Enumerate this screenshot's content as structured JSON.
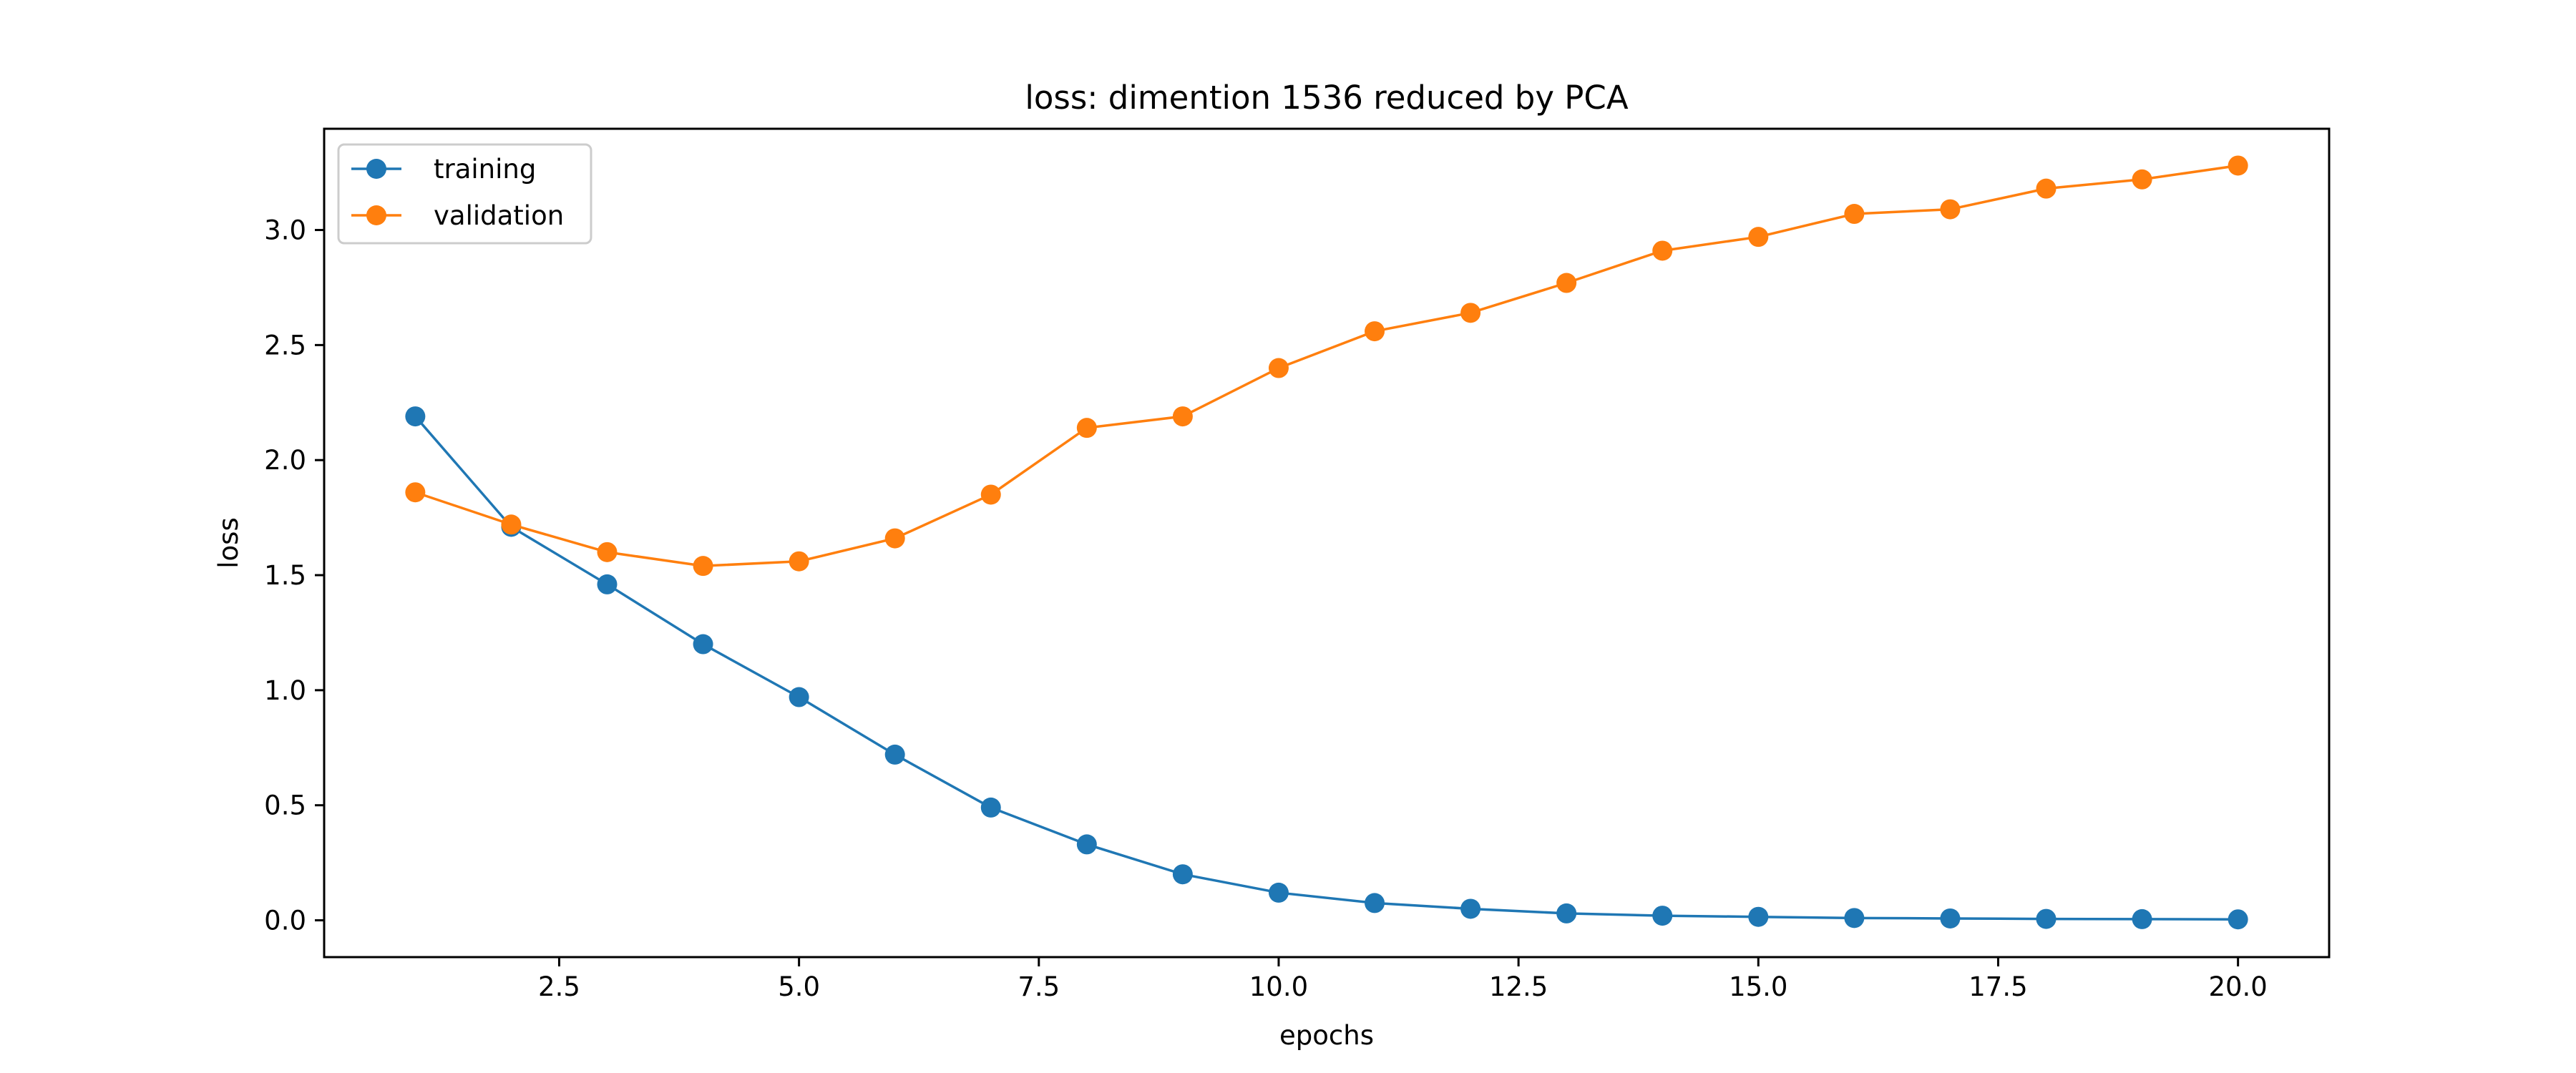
{
  "chart_data": {
    "type": "line",
    "title": "loss: dimention 1536 reduced by PCA",
    "xlabel": "epochs",
    "ylabel": "loss",
    "x": [
      1,
      2,
      3,
      4,
      5,
      6,
      7,
      8,
      9,
      10,
      11,
      12,
      13,
      14,
      15,
      16,
      17,
      18,
      19,
      20
    ],
    "xlim": [
      0.05,
      20.95
    ],
    "ylim": [
      -0.16,
      3.44
    ],
    "xticks": [
      2.5,
      5.0,
      7.5,
      10.0,
      12.5,
      15.0,
      17.5,
      20.0
    ],
    "yticks": [
      0.0,
      0.5,
      1.0,
      1.5,
      2.0,
      2.5,
      3.0
    ],
    "grid": false,
    "legend_position": "upper left",
    "series": [
      {
        "name": "training",
        "color": "#1f77b4",
        "marker": "circle",
        "values": [
          2.19,
          1.71,
          1.46,
          1.2,
          0.97,
          0.72,
          0.49,
          0.33,
          0.2,
          0.12,
          0.075,
          0.05,
          0.03,
          0.02,
          0.015,
          0.01,
          0.008,
          0.006,
          0.005,
          0.004
        ]
      },
      {
        "name": "validation",
        "color": "#ff7f0e",
        "marker": "circle",
        "values": [
          1.86,
          1.72,
          1.6,
          1.54,
          1.56,
          1.66,
          1.85,
          2.14,
          2.19,
          2.4,
          2.56,
          2.64,
          2.77,
          2.91,
          2.97,
          3.07,
          3.09,
          3.18,
          3.22,
          3.28
        ]
      }
    ]
  }
}
